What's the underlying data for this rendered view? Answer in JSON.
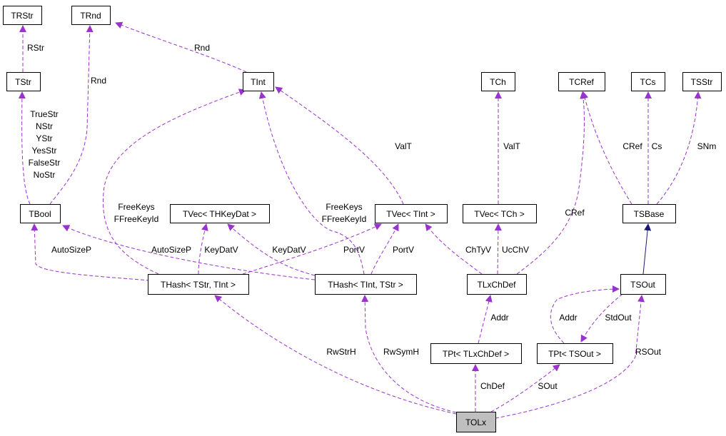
{
  "colors": {
    "usage_edge": "#9a32cd",
    "inheritance_edge": "#191970",
    "focus_node_fill": "#bfbfbf"
  },
  "nodes": [
    {
      "id": "TRStr",
      "label": "TRStr"
    },
    {
      "id": "TRnd",
      "label": "TRnd"
    },
    {
      "id": "TStr",
      "label": "TStr"
    },
    {
      "id": "TInt",
      "label": "TInt"
    },
    {
      "id": "TCh",
      "label": "TCh"
    },
    {
      "id": "TCRef",
      "label": "TCRef"
    },
    {
      "id": "TCs",
      "label": "TCs"
    },
    {
      "id": "TSStr",
      "label": "TSStr"
    },
    {
      "id": "TBool",
      "label": "TBool"
    },
    {
      "id": "TVecTHKeyDat",
      "label": "TVec< THKeyDat >"
    },
    {
      "id": "TVecTInt",
      "label": "TVec< TInt >"
    },
    {
      "id": "TVecTCh",
      "label": "TVec< TCh >"
    },
    {
      "id": "TSBase",
      "label": "TSBase"
    },
    {
      "id": "THashTStrTInt",
      "label": "THash< TStr, TInt >"
    },
    {
      "id": "THashTIntTStr",
      "label": "THash< TInt, TStr >"
    },
    {
      "id": "TLxChDef",
      "label": "TLxChDef"
    },
    {
      "id": "TSOut",
      "label": "TSOut"
    },
    {
      "id": "TPtTLxChDef",
      "label": "TPt< TLxChDef >"
    },
    {
      "id": "TPtTSOut",
      "label": "TPt< TSOut >"
    },
    {
      "id": "TOLx",
      "label": "TOLx",
      "focus": true
    }
  ],
  "edges": [
    {
      "from": "TStr",
      "to": "TRStr",
      "labels": [
        "RStr"
      ]
    },
    {
      "from": "TBool",
      "to": "TRnd",
      "labels": [
        "Rnd"
      ]
    },
    {
      "from": "TInt",
      "to": "TRnd",
      "labels": [
        "Rnd"
      ]
    },
    {
      "from": "TBool",
      "to": "TStr",
      "labels": [
        "TrueStr",
        "NStr",
        "YStr",
        "YesStr",
        "FalseStr",
        "NoStr"
      ]
    },
    {
      "from": "THashTStrTInt",
      "to": "TBool",
      "labels": [
        "AutoSizeP"
      ]
    },
    {
      "from": "THashTIntTStr",
      "to": "TBool",
      "labels": [
        "AutoSizeP"
      ]
    },
    {
      "from": "THashTStrTInt",
      "to": "TInt",
      "labels": [
        "FreeKeys",
        "FFreeKeyId"
      ]
    },
    {
      "from": "THashTStrTInt",
      "to": "TVecTHKeyDat",
      "labels": [
        "KeyDatV"
      ]
    },
    {
      "from": "THashTIntTStr",
      "to": "TVecTHKeyDat",
      "labels": [
        "KeyDatV"
      ]
    },
    {
      "from": "THashTStrTInt",
      "to": "TVecTInt",
      "labels": [
        "PortV"
      ]
    },
    {
      "from": "THashTIntTStr",
      "to": "TVecTInt",
      "labels": [
        "PortV"
      ]
    },
    {
      "from": "THashTIntTStr",
      "to": "TInt",
      "labels": [
        "FreeKeys",
        "FFreeKeyId"
      ]
    },
    {
      "from": "TVecTInt",
      "to": "TInt",
      "labels": [
        "ValT"
      ]
    },
    {
      "from": "TLxChDef",
      "to": "TVecTInt",
      "labels": [
        "ChTyV"
      ]
    },
    {
      "from": "TLxChDef",
      "to": "TVecTCh",
      "labels": [
        "UcChV"
      ]
    },
    {
      "from": "TVecTCh",
      "to": "TCh",
      "labels": [
        "ValT"
      ]
    },
    {
      "from": "TLxChDef",
      "to": "TCRef",
      "labels": [
        "CRef"
      ]
    },
    {
      "from": "TSBase",
      "to": "TCRef",
      "labels": [
        "CRef"
      ]
    },
    {
      "from": "TSBase",
      "to": "TCs",
      "labels": [
        "Cs"
      ]
    },
    {
      "from": "TSBase",
      "to": "TSStr",
      "labels": [
        "SNm"
      ]
    },
    {
      "from": "TSOut",
      "to": "TSBase",
      "labels": [],
      "kind": "inheritance"
    },
    {
      "from": "TPtTSOut",
      "to": "TSOut",
      "labels": [
        "Addr"
      ]
    },
    {
      "from": "TSOut",
      "to": "TPtTSOut",
      "labels": [
        "StdOut"
      ]
    },
    {
      "from": "TOLx",
      "to": "TSOut",
      "labels": [
        "RSOut"
      ]
    },
    {
      "from": "TPtTLxChDef",
      "to": "TLxChDef",
      "labels": [
        "Addr"
      ]
    },
    {
      "from": "TOLx",
      "to": "TPtTLxChDef",
      "labels": [
        "ChDef"
      ]
    },
    {
      "from": "TOLx",
      "to": "TPtTSOut",
      "labels": [
        "SOut"
      ]
    },
    {
      "from": "TOLx",
      "to": "THashTStrTInt",
      "labels": [
        "RwStrH"
      ]
    },
    {
      "from": "TOLx",
      "to": "THashTIntTStr",
      "labels": [
        "RwSymH"
      ]
    }
  ]
}
